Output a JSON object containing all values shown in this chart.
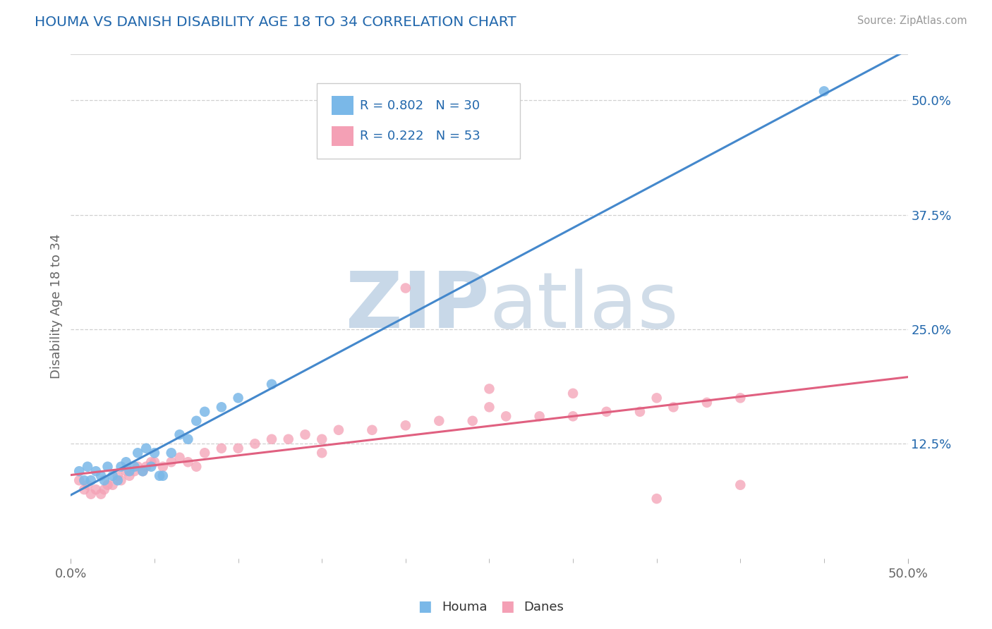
{
  "title": "HOUMA VS DANISH DISABILITY AGE 18 TO 34 CORRELATION CHART",
  "source": "Source: ZipAtlas.com",
  "ylabel": "Disability Age 18 to 34",
  "xlim": [
    0.0,
    0.5
  ],
  "ylim": [
    0.0,
    0.55
  ],
  "xtick_vals": [
    0.0,
    0.5
  ],
  "xtick_labels": [
    "0.0%",
    "50.0%"
  ],
  "ytick_vals": [
    0.125,
    0.25,
    0.375,
    0.5
  ],
  "ytick_labels": [
    "12.5%",
    "25.0%",
    "37.5%",
    "50.0%"
  ],
  "houma_color": "#7ab8e8",
  "danes_color": "#f4a0b5",
  "houma_line_color": "#4488cc",
  "danes_line_color": "#e06080",
  "legend_text_color": "#2167ac",
  "watermark_zip_color": "#c8d8e8",
  "watermark_atlas_color": "#d0dce8",
  "houma_R": 0.802,
  "houma_N": 30,
  "danes_R": 0.222,
  "danes_N": 53,
  "houma_x": [
    0.005,
    0.008,
    0.01,
    0.012,
    0.015,
    0.018,
    0.02,
    0.022,
    0.025,
    0.028,
    0.03,
    0.033,
    0.035,
    0.038,
    0.04,
    0.043,
    0.045,
    0.048,
    0.05,
    0.053,
    0.055,
    0.06,
    0.065,
    0.07,
    0.075,
    0.08,
    0.09,
    0.1,
    0.12,
    0.45
  ],
  "houma_y": [
    0.095,
    0.085,
    0.1,
    0.085,
    0.095,
    0.09,
    0.085,
    0.1,
    0.09,
    0.085,
    0.1,
    0.105,
    0.095,
    0.1,
    0.115,
    0.095,
    0.12,
    0.1,
    0.115,
    0.09,
    0.09,
    0.115,
    0.135,
    0.13,
    0.15,
    0.16,
    0.165,
    0.175,
    0.19,
    0.51
  ],
  "danes_x": [
    0.005,
    0.008,
    0.01,
    0.012,
    0.015,
    0.018,
    0.02,
    0.022,
    0.025,
    0.028,
    0.03,
    0.033,
    0.035,
    0.038,
    0.04,
    0.043,
    0.045,
    0.048,
    0.05,
    0.055,
    0.06,
    0.065,
    0.07,
    0.075,
    0.08,
    0.09,
    0.1,
    0.11,
    0.12,
    0.13,
    0.14,
    0.15,
    0.16,
    0.18,
    0.2,
    0.22,
    0.24,
    0.26,
    0.28,
    0.3,
    0.32,
    0.34,
    0.36,
    0.38,
    0.4,
    0.2,
    0.25,
    0.3,
    0.35,
    0.15,
    0.4,
    0.35,
    0.25
  ],
  "danes_y": [
    0.085,
    0.075,
    0.08,
    0.07,
    0.075,
    0.07,
    0.075,
    0.08,
    0.08,
    0.09,
    0.085,
    0.095,
    0.09,
    0.095,
    0.1,
    0.095,
    0.1,
    0.105,
    0.105,
    0.1,
    0.105,
    0.11,
    0.105,
    0.1,
    0.115,
    0.12,
    0.12,
    0.125,
    0.13,
    0.13,
    0.135,
    0.13,
    0.14,
    0.14,
    0.145,
    0.15,
    0.15,
    0.155,
    0.155,
    0.155,
    0.16,
    0.16,
    0.165,
    0.17,
    0.175,
    0.295,
    0.185,
    0.18,
    0.175,
    0.115,
    0.08,
    0.065,
    0.165
  ],
  "grid_color": "#d0d0d0",
  "grid_linestyle": "--"
}
